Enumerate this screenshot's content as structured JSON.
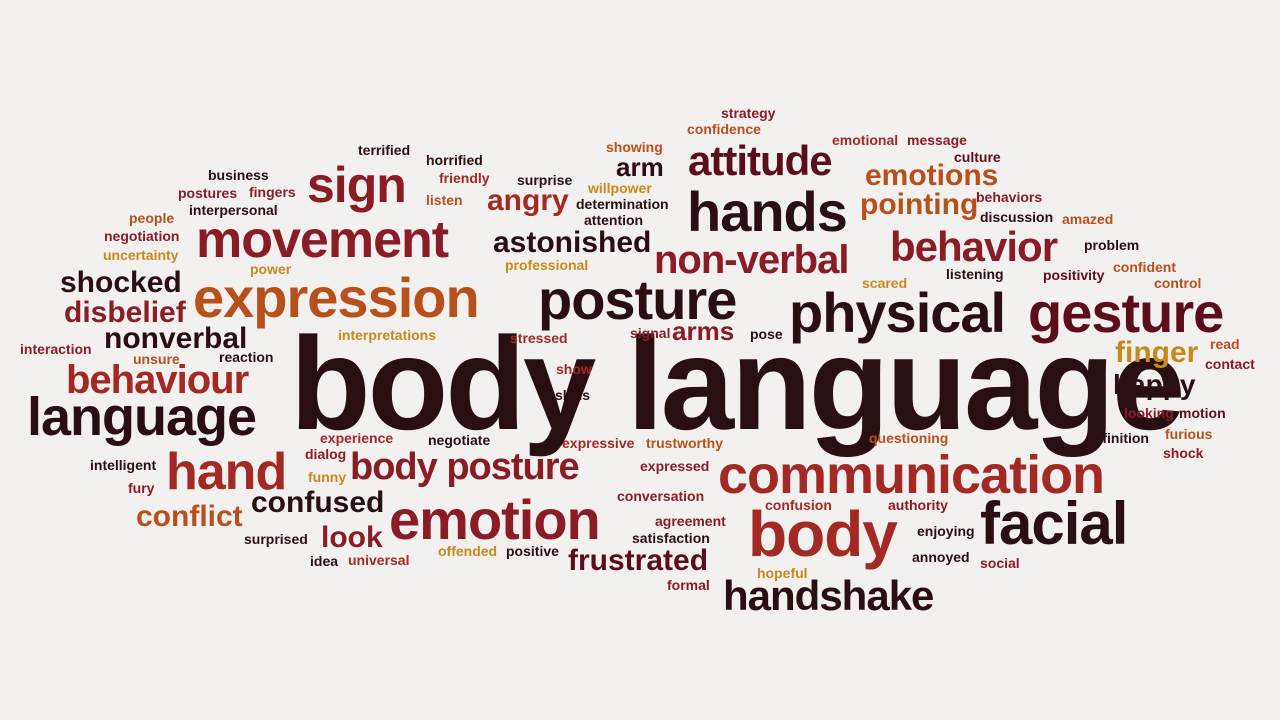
{
  "colors": {
    "background": "#f2f1f0",
    "palette": [
      "#2a0f12",
      "#5c0d1c",
      "#8a1c26",
      "#a32a24",
      "#b8501c",
      "#c9881c"
    ]
  },
  "words": [
    {
      "text": "body language",
      "color": "#2a0f12"
    },
    {
      "text": "communication",
      "color": "#a32a24"
    },
    {
      "text": "physical",
      "color": "#2a0f12"
    },
    {
      "text": "gesture",
      "color": "#5c0d1c"
    },
    {
      "text": "expression",
      "color": "#b8501c"
    },
    {
      "text": "posture",
      "color": "#2a0f12"
    },
    {
      "text": "movement",
      "color": "#8a1c26"
    },
    {
      "text": "language",
      "color": "#2a0f12"
    },
    {
      "text": "body posture",
      "color": "#8a1c26"
    },
    {
      "text": "emotion",
      "color": "#8a1c26"
    },
    {
      "text": "body",
      "color": "#a32a24"
    },
    {
      "text": "facial",
      "color": "#2a0f12"
    },
    {
      "text": "hands",
      "color": "#2a0f12"
    },
    {
      "text": "attitude",
      "color": "#5c0d1c"
    },
    {
      "text": "sign",
      "color": "#8a1c26"
    },
    {
      "text": "hand",
      "color": "#a32a24"
    },
    {
      "text": "behaviour",
      "color": "#a32a24"
    },
    {
      "text": "behavior",
      "color": "#8a1c26"
    },
    {
      "text": "non-verbal",
      "color": "#8a1c26"
    },
    {
      "text": "handshake",
      "color": "#2a0f12"
    },
    {
      "text": "frustrated",
      "color": "#5c0d1c"
    },
    {
      "text": "confused",
      "color": "#2a0f12"
    },
    {
      "text": "emotions",
      "color": "#b8501c"
    },
    {
      "text": "pointing",
      "color": "#b8501c"
    },
    {
      "text": "astonished",
      "color": "#2a0f12"
    },
    {
      "text": "nonverbal",
      "color": "#2a0f12"
    },
    {
      "text": "shocked",
      "color": "#2a0f12"
    },
    {
      "text": "disbelief",
      "color": "#8a1c26"
    },
    {
      "text": "conflict",
      "color": "#b8501c"
    },
    {
      "text": "look",
      "color": "#8a1c26"
    },
    {
      "text": "angry",
      "color": "#a32a24"
    },
    {
      "text": "finger",
      "color": "#c9881c"
    },
    {
      "text": "happy",
      "color": "#2a0f12"
    },
    {
      "text": "arms",
      "color": "#8a1c26"
    },
    {
      "text": "arm",
      "color": "#2a0f12"
    },
    {
      "text": "strategy",
      "color": "#8a1c26"
    },
    {
      "text": "confidence",
      "color": "#b8501c"
    },
    {
      "text": "emotional",
      "color": "#a32a24"
    },
    {
      "text": "message",
      "color": "#8a1c26"
    },
    {
      "text": "culture",
      "color": "#5c0d1c"
    },
    {
      "text": "showing",
      "color": "#b8501c"
    },
    {
      "text": "behaviors",
      "color": "#8a1c26"
    },
    {
      "text": "discussion",
      "color": "#2a0f12"
    },
    {
      "text": "amazed",
      "color": "#b8501c"
    },
    {
      "text": "problem",
      "color": "#2a0f12"
    },
    {
      "text": "listening",
      "color": "#2a0f12"
    },
    {
      "text": "positivity",
      "color": "#5c0d1c"
    },
    {
      "text": "confident",
      "color": "#b8501c"
    },
    {
      "text": "scared",
      "color": "#c9881c"
    },
    {
      "text": "control",
      "color": "#b8501c"
    },
    {
      "text": "read",
      "color": "#b8501c"
    },
    {
      "text": "contact",
      "color": "#8a1c26"
    },
    {
      "text": "terrified",
      "color": "#2a0f12"
    },
    {
      "text": "horrified",
      "color": "#2a0f12"
    },
    {
      "text": "business",
      "color": "#2a0f12"
    },
    {
      "text": "postures",
      "color": "#8a1c26"
    },
    {
      "text": "fingers",
      "color": "#8a1c26"
    },
    {
      "text": "friendly",
      "color": "#a32a24"
    },
    {
      "text": "surprise",
      "color": "#2a0f12"
    },
    {
      "text": "willpower",
      "color": "#c9881c"
    },
    {
      "text": "listen",
      "color": "#b8501c"
    },
    {
      "text": "determination",
      "color": "#2a0f12"
    },
    {
      "text": "interpersonal",
      "color": "#2a0f12"
    },
    {
      "text": "people",
      "color": "#b8501c"
    },
    {
      "text": "attention",
      "color": "#2a0f12"
    },
    {
      "text": "negotiation",
      "color": "#8a1c26"
    },
    {
      "text": "uncertainty",
      "color": "#c9881c"
    },
    {
      "text": "power",
      "color": "#c9881c"
    },
    {
      "text": "professional",
      "color": "#c9881c"
    },
    {
      "text": "interpretations",
      "color": "#c9881c"
    },
    {
      "text": "stressed",
      "color": "#a32a24"
    },
    {
      "text": "signal",
      "color": "#8a1c26"
    },
    {
      "text": "pose",
      "color": "#2a0f12"
    },
    {
      "text": "interaction",
      "color": "#8a1c26"
    },
    {
      "text": "unsure",
      "color": "#b8501c"
    },
    {
      "text": "reaction",
      "color": "#2a0f12"
    },
    {
      "text": "show",
      "color": "#a32a24"
    },
    {
      "text": "skills",
      "color": "#2a0f12"
    },
    {
      "text": "looking",
      "color": "#8a1c26"
    },
    {
      "text": "motion",
      "color": "#5c0d1c"
    },
    {
      "text": "experience",
      "color": "#a32a24"
    },
    {
      "text": "negotiate",
      "color": "#2a0f12"
    },
    {
      "text": "expressive",
      "color": "#a32a24"
    },
    {
      "text": "trustworthy",
      "color": "#b8501c"
    },
    {
      "text": "questioning",
      "color": "#b8501c"
    },
    {
      "text": "definition",
      "color": "#2a0f12"
    },
    {
      "text": "furious",
      "color": "#b8501c"
    },
    {
      "text": "intelligent",
      "color": "#2a0f12"
    },
    {
      "text": "dialog",
      "color": "#8a1c26"
    },
    {
      "text": "funny",
      "color": "#c9881c"
    },
    {
      "text": "expressed",
      "color": "#8a1c26"
    },
    {
      "text": "shock",
      "color": "#8a1c26"
    },
    {
      "text": "fury",
      "color": "#8a1c26"
    },
    {
      "text": "conversation",
      "color": "#8a1c26"
    },
    {
      "text": "confusion",
      "color": "#a32a24"
    },
    {
      "text": "authority",
      "color": "#8a1c26"
    },
    {
      "text": "agreement",
      "color": "#8a1c26"
    },
    {
      "text": "enjoying",
      "color": "#2a0f12"
    },
    {
      "text": "satisfaction",
      "color": "#2a0f12"
    },
    {
      "text": "surprised",
      "color": "#2a0f12"
    },
    {
      "text": "offended",
      "color": "#c9881c"
    },
    {
      "text": "positive",
      "color": "#2a0f12"
    },
    {
      "text": "annoyed",
      "color": "#2a0f12"
    },
    {
      "text": "idea",
      "color": "#2a0f12"
    },
    {
      "text": "universal",
      "color": "#a32a24"
    },
    {
      "text": "hopeful",
      "color": "#c9881c"
    },
    {
      "text": "social",
      "color": "#8a1c26"
    },
    {
      "text": "formal",
      "color": "#8a1c26"
    }
  ]
}
